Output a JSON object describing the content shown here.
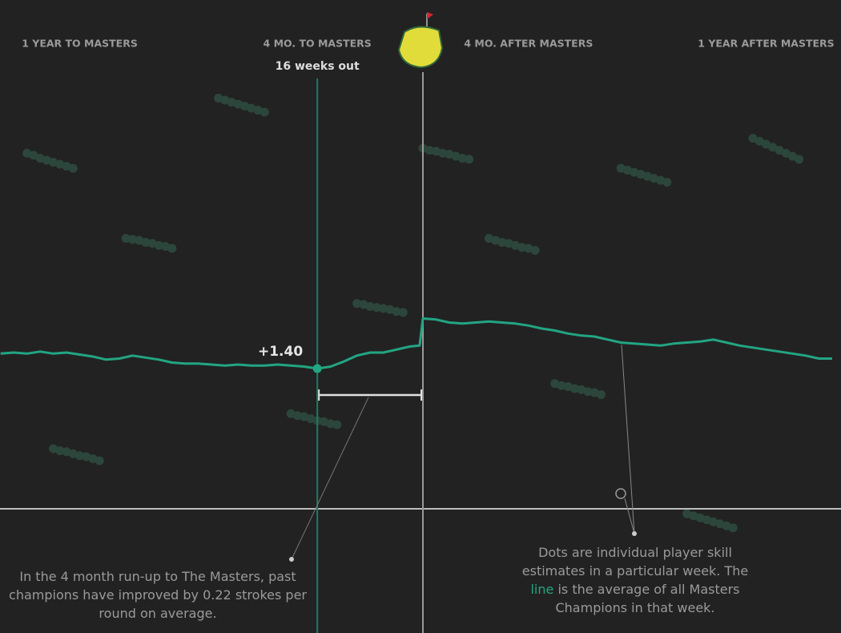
{
  "chart_data": {
    "type": "line",
    "xlim": [
      -64.08,
      63.35
    ],
    "ylim": [
      -1.24,
      5.08
    ],
    "xticks": [
      {
        "value": -52,
        "label": "1 YEAR TO MASTERS"
      },
      {
        "value": -16,
        "label": "4 MO. TO MASTERS"
      },
      {
        "value": 16,
        "label": "4 MO. AFTER MASTERS"
      },
      {
        "value": 52,
        "label": "1 YEAR AFTER MASTERS"
      }
    ],
    "baseline": 0,
    "masters_week": 0,
    "series": [
      {
        "color": "#22a583",
        "x": [
          -64,
          -62,
          -60,
          -58,
          -56,
          -54,
          -52,
          -50,
          -48,
          -46,
          -44,
          -42,
          -40,
          -38,
          -36,
          -34,
          -32,
          -30,
          -28,
          -26,
          -24,
          -22,
          -20,
          -18,
          -16,
          -14,
          -12,
          -10,
          -8,
          -6,
          -4,
          -2,
          -0.5,
          0,
          2,
          4,
          6,
          8,
          10,
          12,
          14,
          16,
          18,
          20,
          22,
          24,
          26,
          28,
          30,
          32,
          34,
          36,
          38,
          40,
          42,
          44,
          46,
          48,
          50,
          52,
          54,
          56,
          58,
          60,
          62
        ],
        "values": [
          1.55,
          1.56,
          1.55,
          1.57,
          1.55,
          1.56,
          1.54,
          1.52,
          1.49,
          1.5,
          1.53,
          1.51,
          1.49,
          1.46,
          1.45,
          1.45,
          1.44,
          1.43,
          1.44,
          1.43,
          1.43,
          1.44,
          1.43,
          1.42,
          1.4,
          1.42,
          1.47,
          1.53,
          1.56,
          1.56,
          1.59,
          1.62,
          1.63,
          1.9,
          1.89,
          1.86,
          1.85,
          1.86,
          1.87,
          1.86,
          1.85,
          1.83,
          1.8,
          1.78,
          1.75,
          1.73,
          1.72,
          1.69,
          1.66,
          1.65,
          1.64,
          1.63,
          1.65,
          1.66,
          1.67,
          1.69,
          1.66,
          1.63,
          1.61,
          1.59,
          1.57,
          1.55,
          1.53,
          1.5,
          1.5
        ]
      }
    ],
    "dot_color": "#2c463c",
    "players": [
      {
        "x": [
          -31,
          -30,
          -29,
          -28,
          -27,
          -26,
          -25,
          -24
        ],
        "values": [
          4.1,
          4.08,
          4.06,
          4.04,
          4.02,
          4.0,
          3.98,
          3.96
        ]
      },
      {
        "x": [
          -60,
          -59,
          -58,
          -57,
          -56,
          -55,
          -54,
          -53
        ],
        "values": [
          3.55,
          3.53,
          3.5,
          3.48,
          3.46,
          3.44,
          3.42,
          3.4
        ]
      },
      {
        "x": [
          0,
          1,
          2,
          3,
          4,
          5,
          6,
          7
        ],
        "values": [
          3.6,
          3.58,
          3.57,
          3.55,
          3.54,
          3.52,
          3.5,
          3.49
        ]
      },
      {
        "x": [
          30,
          31,
          32,
          33,
          34,
          35,
          36,
          37
        ],
        "values": [
          3.4,
          3.38,
          3.36,
          3.34,
          3.32,
          3.3,
          3.28,
          3.26
        ]
      },
      {
        "x": [
          -45,
          -44,
          -43,
          -42,
          -41,
          -40,
          -39,
          -38
        ],
        "values": [
          2.7,
          2.69,
          2.68,
          2.66,
          2.65,
          2.63,
          2.62,
          2.6
        ]
      },
      {
        "x": [
          10,
          11,
          12,
          13,
          14,
          15,
          16,
          17
        ],
        "values": [
          2.7,
          2.68,
          2.66,
          2.65,
          2.63,
          2.61,
          2.6,
          2.58
        ]
      },
      {
        "x": [
          -20,
          -19,
          -18,
          -17,
          -16,
          -15,
          -14,
          -13
        ],
        "values": [
          0.95,
          0.93,
          0.92,
          0.9,
          0.88,
          0.87,
          0.85,
          0.84
        ]
      },
      {
        "x": [
          40,
          41,
          42,
          43,
          44,
          45,
          46,
          47
        ],
        "values": [
          -0.05,
          -0.07,
          -0.09,
          -0.11,
          -0.13,
          -0.15,
          -0.17,
          -0.19
        ]
      },
      {
        "x": [
          -56,
          -55,
          -54,
          -53,
          -52,
          -51,
          -50,
          -49
        ],
        "values": [
          0.6,
          0.58,
          0.57,
          0.55,
          0.53,
          0.52,
          0.5,
          0.48
        ]
      },
      {
        "x": [
          20,
          21,
          22,
          23,
          24,
          25,
          26,
          27
        ],
        "values": [
          1.25,
          1.23,
          1.22,
          1.2,
          1.19,
          1.17,
          1.16,
          1.14
        ]
      },
      {
        "x": [
          50,
          51,
          52,
          53,
          54,
          55,
          56,
          57
        ],
        "values": [
          3.7,
          3.67,
          3.64,
          3.61,
          3.58,
          3.55,
          3.52,
          3.49
        ]
      },
      {
        "x": [
          -10,
          -9,
          -8,
          -7,
          -6,
          -5,
          -4,
          -3
        ],
        "values": [
          2.05,
          2.04,
          2.02,
          2.01,
          2.0,
          1.99,
          1.97,
          1.96
        ]
      }
    ],
    "highlight": {
      "x": -16,
      "value": 1.4,
      "value_label": "+1.40",
      "label": "16 weeks out"
    },
    "annotations": {
      "runup": "In the 4 month run-up to The Masters, past champions have improved by 0.22 strokes per round on average.",
      "legend_before": "Dots are individual player skill estimates in a particular week. The",
      "legend_word": "line",
      "legend_after": "is the average of all Masters Champions in that week."
    }
  }
}
